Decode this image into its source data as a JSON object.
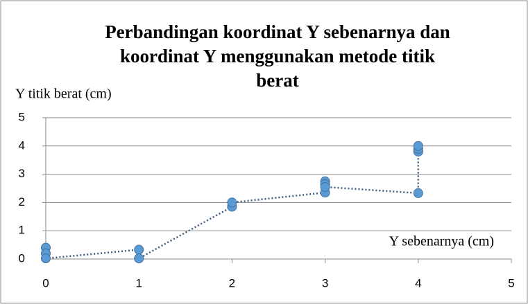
{
  "chart_data": {
    "type": "scatter",
    "title": [
      "Perbandingan koordinat Y sebenarnya dan",
      "koordinat Y menggunakan metode titik",
      "berat"
    ],
    "y_label": "Y titik berat (cm)",
    "x_label": "Y sebenarnya (cm)",
    "series": [
      {
        "name": "Y titik berat",
        "color": "#5b9bd5",
        "line_color": "#3d5a80",
        "x": [
          0,
          0,
          0,
          1,
          1,
          2,
          2,
          3,
          3,
          3,
          3,
          4,
          4,
          4,
          4
        ],
        "values": [
          0.4,
          0.2,
          0.02,
          0.33,
          0.02,
          1.85,
          2.0,
          2.35,
          2.75,
          2.65,
          2.55,
          2.33,
          3.8,
          3.9,
          4.0
        ]
      }
    ],
    "xlim": [
      0,
      5
    ],
    "xticks": [
      0,
      1,
      2,
      3,
      4,
      5
    ],
    "ylim": [
      0,
      5
    ],
    "yticks": [
      0,
      1,
      2,
      3,
      4,
      5
    ],
    "grid": true
  }
}
